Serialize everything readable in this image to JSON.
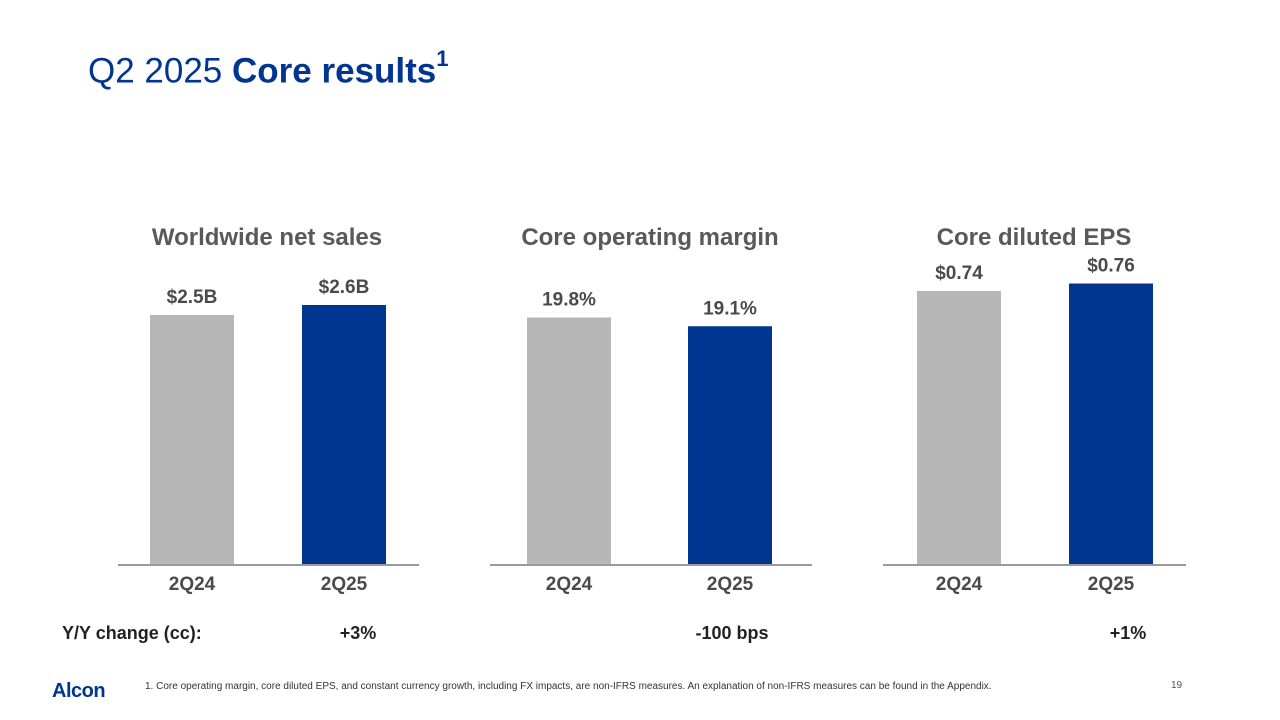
{
  "slide": {
    "title_regular": "Q2 2025",
    "title_bold": "Core results",
    "title_superscript": "1"
  },
  "chart_data": [
    {
      "type": "bar",
      "title": "Worldwide net sales",
      "categories": [
        "2Q24",
        "2Q25"
      ],
      "values": [
        2.5,
        2.6
      ],
      "labels": [
        "$2.5B",
        "$2.6B"
      ],
      "ylim": [
        0,
        3.0
      ],
      "unit": "$B",
      "colors": [
        "#b7b7b7",
        "#003591"
      ],
      "yoy_change": "+3%"
    },
    {
      "type": "bar",
      "title": "Core operating margin",
      "categories": [
        "2Q24",
        "2Q25"
      ],
      "values": [
        19.8,
        19.1
      ],
      "labels": [
        "19.8%",
        "19.1%"
      ],
      "ylim": [
        0,
        24.0
      ],
      "unit": "%",
      "colors": [
        "#b7b7b7",
        "#003591"
      ],
      "yoy_change": "-100 bps"
    },
    {
      "type": "bar",
      "title": "Core diluted EPS",
      "categories": [
        "2Q24",
        "2Q25"
      ],
      "values": [
        0.74,
        0.76
      ],
      "labels": [
        "$0.74",
        "$0.76"
      ],
      "ylim": [
        0,
        0.81
      ],
      "unit": "$",
      "colors": [
        "#b7b7b7",
        "#003591"
      ],
      "yoy_change": "+1%"
    }
  ],
  "yoy": {
    "label": "Y/Y change (cc):"
  },
  "footer": {
    "logo": "Alcon",
    "footnote": "1.  Core operating margin, core diluted EPS, and constant currency growth, including FX impacts, are non-IFRS measures.  An explanation of non-IFRS measures can be found in the Appendix.",
    "page_number": "19"
  }
}
